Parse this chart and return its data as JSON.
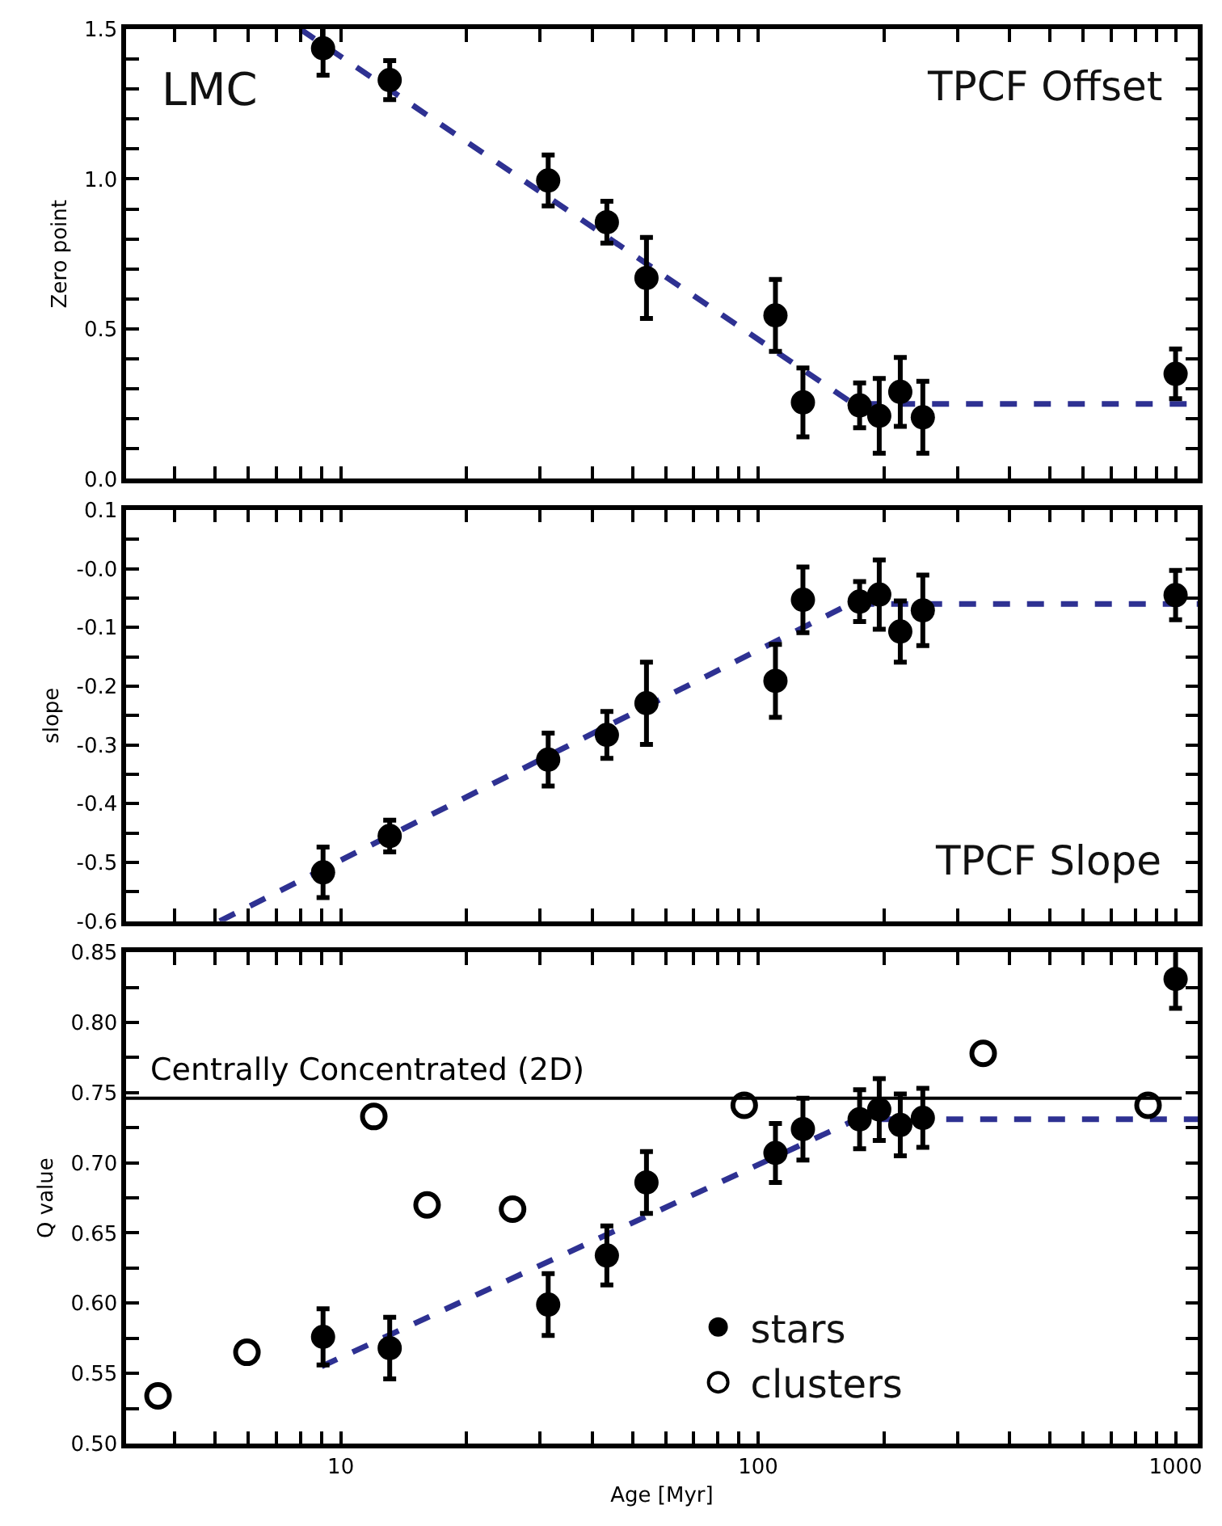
{
  "chart_data": [
    {
      "type": "scatter",
      "ylabel": "Zero point",
      "annotations": [
        "LMC",
        "TPCF Offset"
      ],
      "tick_labels": "y",
      "legend": false,
      "xlim": [
        3.06,
        1130
      ],
      "xticks": [
        {
          "value": 4,
          "label": null
        },
        {
          "value": 5,
          "label": null
        },
        {
          "value": 6,
          "label": null
        },
        {
          "value": 7,
          "label": null
        },
        {
          "value": 8,
          "label": null
        },
        {
          "value": 9,
          "label": null
        },
        {
          "value": 10,
          "label": null
        },
        {
          "value": 20,
          "label": null
        },
        {
          "value": 30,
          "label": null
        },
        {
          "value": 40,
          "label": null
        },
        {
          "value": 50,
          "label": null
        },
        {
          "value": 60,
          "label": null
        },
        {
          "value": 70,
          "label": null
        },
        {
          "value": 80,
          "label": null
        },
        {
          "value": 90,
          "label": null
        },
        {
          "value": 100,
          "label": null
        },
        {
          "value": 200,
          "label": null
        },
        {
          "value": 300,
          "label": null
        },
        {
          "value": 400,
          "label": null
        },
        {
          "value": 500,
          "label": null
        },
        {
          "value": 600,
          "label": null
        },
        {
          "value": 700,
          "label": null
        },
        {
          "value": 800,
          "label": null
        },
        {
          "value": 900,
          "label": null
        },
        {
          "value": 1000,
          "label": null
        }
      ],
      "log": "x",
      "ylim": [
        0,
        1.5
      ],
      "yticks": [
        {
          "value": 0,
          "label": "0.0"
        },
        {
          "value": 0.1,
          "label": null
        },
        {
          "value": 0.2,
          "label": null
        },
        {
          "value": 0.3,
          "label": null
        },
        {
          "value": 0.4,
          "label": null
        },
        {
          "value": 0.5,
          "label": "0.5"
        },
        {
          "value": 0.6,
          "label": null
        },
        {
          "value": 0.7,
          "label": null
        },
        {
          "value": 0.8,
          "label": null
        },
        {
          "value": 0.9,
          "label": null
        },
        {
          "value": 1.0,
          "label": "1.0"
        },
        {
          "value": 1.1,
          "label": null
        },
        {
          "value": 1.2,
          "label": null
        },
        {
          "value": 1.3,
          "label": null
        },
        {
          "value": 1.4,
          "label": null
        },
        {
          "value": 1.5,
          "label": "1.5"
        }
      ],
      "series": [
        {
          "type": "line",
          "color": "#2e3192",
          "line_style": "dashed",
          "marker": "none",
          "x": [
            8,
            169,
            1130
          ],
          "values": [
            1.5,
            0.25,
            0.25
          ]
        },
        {
          "color": "#000000",
          "marker": "circle",
          "x": [
            9.07,
            13.1,
            31.4,
            43.4,
            54,
            110,
            128,
            175,
            195,
            219,
            248,
            1000
          ],
          "values": [
            1.436,
            1.33,
            0.995,
            0.856,
            0.67,
            0.545,
            0.255,
            0.245,
            0.21,
            0.29,
            0.205,
            0.35
          ],
          "errors": [
            0.09,
            0.065,
            0.085,
            0.07,
            0.135,
            0.12,
            0.115,
            0.075,
            0.125,
            0.115,
            0.12,
            0.083
          ]
        }
      ]
    },
    {
      "type": "scatter",
      "ylabel": "slope",
      "annotations": [
        "TPCF Slope"
      ],
      "tick_labels": "y",
      "legend": false,
      "xlim": [
        3.06,
        1130
      ],
      "xticks": [
        {
          "value": 4,
          "label": null
        },
        {
          "value": 5,
          "label": null
        },
        {
          "value": 6,
          "label": null
        },
        {
          "value": 7,
          "label": null
        },
        {
          "value": 8,
          "label": null
        },
        {
          "value": 9,
          "label": null
        },
        {
          "value": 10,
          "label": null
        },
        {
          "value": 20,
          "label": null
        },
        {
          "value": 30,
          "label": null
        },
        {
          "value": 40,
          "label": null
        },
        {
          "value": 50,
          "label": null
        },
        {
          "value": 60,
          "label": null
        },
        {
          "value": 70,
          "label": null
        },
        {
          "value": 80,
          "label": null
        },
        {
          "value": 90,
          "label": null
        },
        {
          "value": 100,
          "label": null
        },
        {
          "value": 200,
          "label": null
        },
        {
          "value": 300,
          "label": null
        },
        {
          "value": 400,
          "label": null
        },
        {
          "value": 500,
          "label": null
        },
        {
          "value": 600,
          "label": null
        },
        {
          "value": 700,
          "label": null
        },
        {
          "value": 800,
          "label": null
        },
        {
          "value": 900,
          "label": null
        },
        {
          "value": 1000,
          "label": null
        }
      ],
      "log": "x",
      "ylim": [
        -0.6,
        0.1
      ],
      "yticks": [
        {
          "value": -0.6,
          "label": "-0.6"
        },
        {
          "value": -0.55,
          "label": null
        },
        {
          "value": -0.5,
          "label": "-0.5"
        },
        {
          "value": -0.45,
          "label": null
        },
        {
          "value": -0.4,
          "label": "-0.4"
        },
        {
          "value": -0.35,
          "label": null
        },
        {
          "value": -0.3,
          "label": "-0.3"
        },
        {
          "value": -0.25,
          "label": null
        },
        {
          "value": -0.2,
          "label": "-0.2"
        },
        {
          "value": -0.15,
          "label": null
        },
        {
          "value": -0.1,
          "label": "-0.1"
        },
        {
          "value": -0.05,
          "label": null
        },
        {
          "value": 0,
          "label": "-0.0"
        },
        {
          "value": 0.05,
          "label": null
        },
        {
          "value": 0.1,
          "label": "0.1"
        }
      ],
      "series": [
        {
          "type": "line",
          "color": "#2e3192",
          "line_style": "dashed",
          "marker": "none",
          "x": [
            5.13,
            166,
            1130
          ],
          "values": [
            -0.6,
            -0.06,
            -0.06
          ]
        },
        {
          "color": "#000000",
          "marker": "circle",
          "x": [
            9.07,
            13.1,
            31.4,
            43.4,
            54,
            110,
            128,
            175,
            195,
            219,
            248,
            1000
          ],
          "values": [
            -0.517,
            -0.455,
            -0.325,
            -0.283,
            -0.229,
            -0.191,
            -0.053,
            -0.056,
            -0.044,
            -0.107,
            -0.071,
            -0.045
          ],
          "errors": [
            0.043,
            0.027,
            0.045,
            0.04,
            0.07,
            0.062,
            0.056,
            0.034,
            0.059,
            0.052,
            0.06,
            0.042
          ]
        }
      ]
    },
    {
      "type": "scatter",
      "ylabel": "Q value",
      "xlabel": "Age [Myr]",
      "legend": "bottom right",
      "xlim": [
        3.06,
        1130
      ],
      "xticks": [
        {
          "value": 4,
          "label": null
        },
        {
          "value": 5,
          "label": null
        },
        {
          "value": 6,
          "label": null
        },
        {
          "value": 7,
          "label": null
        },
        {
          "value": 8,
          "label": null
        },
        {
          "value": 9,
          "label": null
        },
        {
          "value": 10,
          "label": "10"
        },
        {
          "value": 20,
          "label": null
        },
        {
          "value": 30,
          "label": null
        },
        {
          "value": 40,
          "label": null
        },
        {
          "value": 50,
          "label": null
        },
        {
          "value": 60,
          "label": null
        },
        {
          "value": 70,
          "label": null
        },
        {
          "value": 80,
          "label": null
        },
        {
          "value": 90,
          "label": null
        },
        {
          "value": 100,
          "label": "100"
        },
        {
          "value": 200,
          "label": null
        },
        {
          "value": 300,
          "label": null
        },
        {
          "value": 400,
          "label": null
        },
        {
          "value": 500,
          "label": null
        },
        {
          "value": 600,
          "label": null
        },
        {
          "value": 700,
          "label": null
        },
        {
          "value": 800,
          "label": null
        },
        {
          "value": 900,
          "label": null
        },
        {
          "value": 1000,
          "label": "1000"
        }
      ],
      "log": "x",
      "ylim": [
        0.5,
        0.85
      ],
      "yticks": [
        {
          "value": 0.5,
          "label": "0.50"
        },
        {
          "value": 0.525,
          "label": null
        },
        {
          "value": 0.55,
          "label": "0.55"
        },
        {
          "value": 0.575,
          "label": null
        },
        {
          "value": 0.6,
          "label": "0.60"
        },
        {
          "value": 0.625,
          "label": null
        },
        {
          "value": 0.65,
          "label": "0.65"
        },
        {
          "value": 0.675,
          "label": null
        },
        {
          "value": 0.7,
          "label": "0.70"
        },
        {
          "value": 0.725,
          "label": null
        },
        {
          "value": 0.75,
          "label": "0.75"
        },
        {
          "value": 0.775,
          "label": null
        },
        {
          "value": 0.8,
          "label": "0.80"
        },
        {
          "value": 0.825,
          "label": null
        },
        {
          "value": 0.85,
          "label": "0.85"
        }
      ],
      "ref_lines": [
        {
          "axis": "y",
          "value": 0.746,
          "label": "Centrally Concentrated (2D)",
          "color": "#000000",
          "line_style": "solid"
        }
      ],
      "series": [
        {
          "type": "line",
          "color": "#2e3192",
          "line_style": "dashed",
          "marker": "none",
          "x": [
            9,
            172,
            1130
          ],
          "values": [
            0.555,
            0.731,
            0.731
          ]
        },
        {
          "name": "stars",
          "color": "#000000",
          "marker": "circle",
          "x": [
            9.07,
            13.1,
            31.4,
            43.4,
            54,
            110,
            128,
            175,
            195,
            219,
            248,
            1000
          ],
          "values": [
            0.576,
            0.568,
            0.599,
            0.634,
            0.686,
            0.707,
            0.724,
            0.731,
            0.738,
            0.727,
            0.732,
            0.831
          ],
          "errors": [
            0.02,
            0.022,
            0.022,
            0.021,
            0.022,
            0.021,
            0.022,
            0.021,
            0.022,
            0.022,
            0.021,
            0.021
          ]
        },
        {
          "name": "clusters",
          "color": "#000000",
          "marker": "circle-open",
          "x": [
            3.65,
            5.96,
            12.0,
            16.1,
            25.8,
            92.6,
            346,
            859
          ],
          "values": [
            0.534,
            0.565,
            0.733,
            0.67,
            0.667,
            0.741,
            0.778,
            0.741
          ]
        }
      ]
    }
  ]
}
